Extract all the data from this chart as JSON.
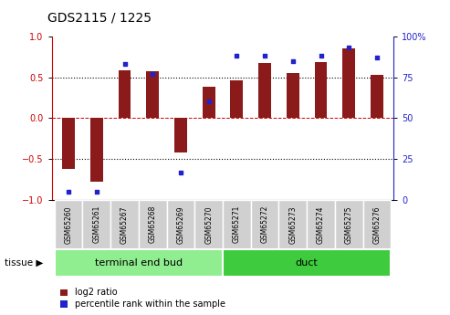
{
  "title": "GDS2115 / 1225",
  "samples": [
    "GSM65260",
    "GSM65261",
    "GSM65267",
    "GSM65268",
    "GSM65269",
    "GSM65270",
    "GSM65271",
    "GSM65272",
    "GSM65273",
    "GSM65274",
    "GSM65275",
    "GSM65276"
  ],
  "log2_ratio": [
    -0.62,
    -0.78,
    0.58,
    0.57,
    -0.42,
    0.38,
    0.46,
    0.67,
    0.55,
    0.68,
    0.85,
    0.53
  ],
  "percentile": [
    5,
    5,
    83,
    77,
    17,
    60,
    88,
    88,
    85,
    88,
    93,
    87
  ],
  "tissue_groups": [
    {
      "label": "terminal end bud",
      "start": 0,
      "end": 6,
      "color": "#90EE90"
    },
    {
      "label": "duct",
      "start": 6,
      "end": 12,
      "color": "#3ECC3E"
    }
  ],
  "bar_color": "#8B1A1A",
  "dot_color": "#2222CC",
  "ylim_left": [
    -1,
    1
  ],
  "ylim_right": [
    0,
    100
  ],
  "yticks_left": [
    -1,
    -0.5,
    0,
    0.5,
    1
  ],
  "yticks_right": [
    0,
    25,
    50,
    75,
    100
  ],
  "legend_red_label": "log2 ratio",
  "legend_blue_label": "percentile rank within the sample",
  "tissue_label": "tissue",
  "left_axis_color": "#CC0000",
  "right_axis_color": "#2222CC",
  "sample_box_color": "#D0D0D0",
  "bar_width": 0.45
}
